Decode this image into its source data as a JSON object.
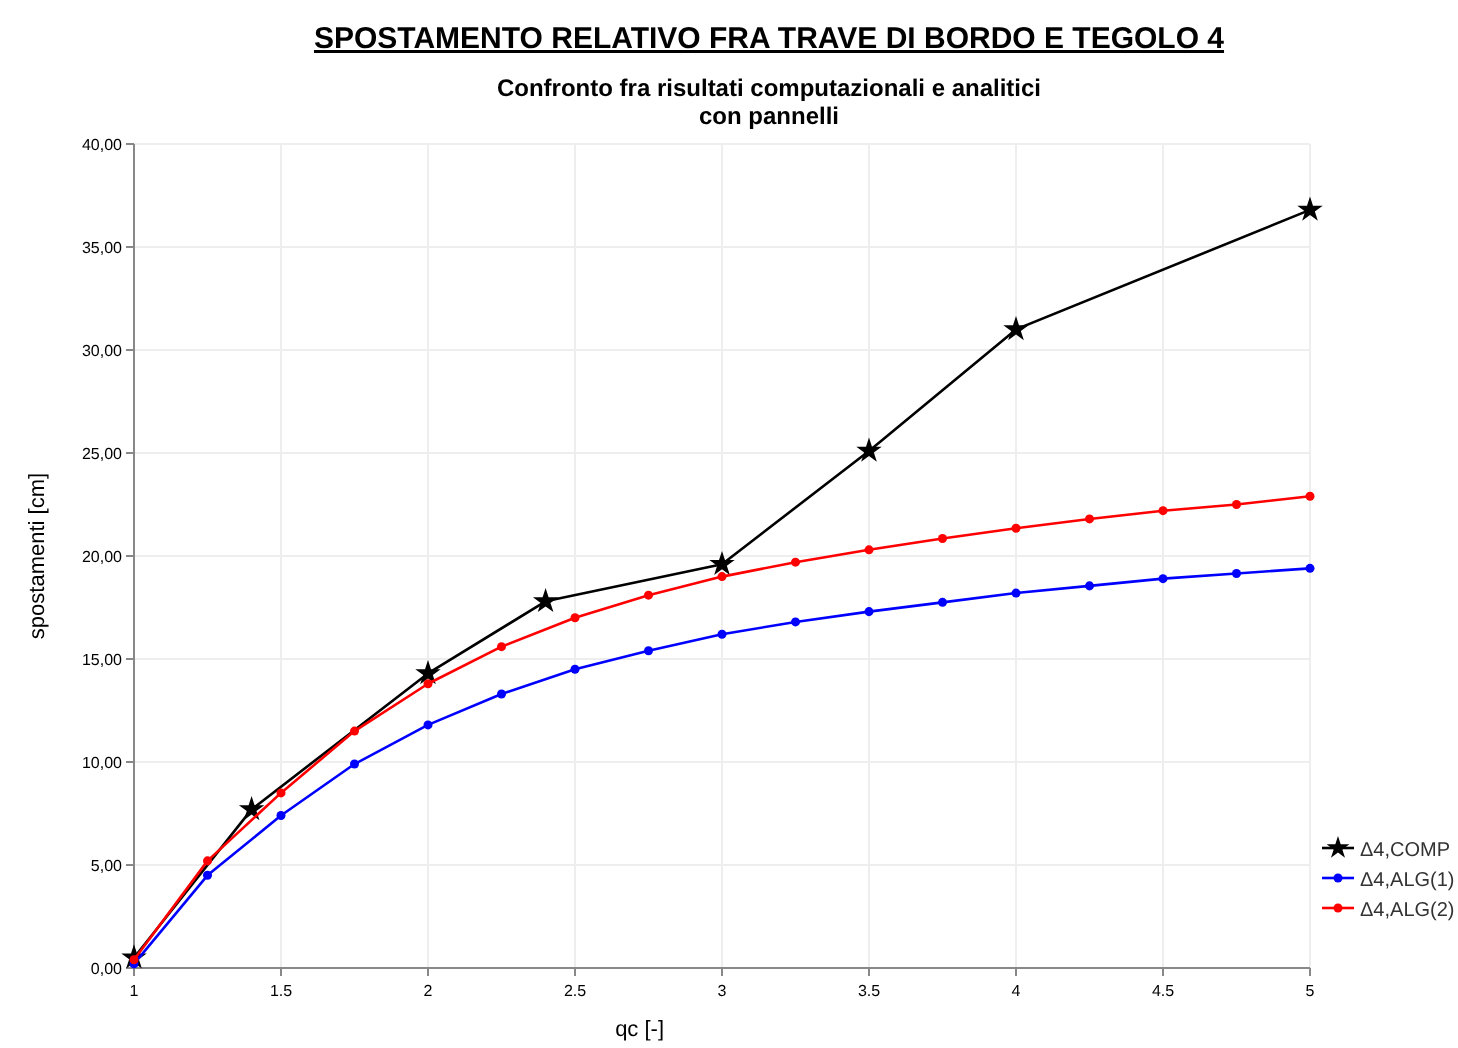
{
  "chart_data": {
    "type": "line",
    "title": "SPOSTAMENTO RELATIVO FRA TRAVE DI BORDO E TEGOLO 4",
    "subtitle": "Confronto fra risultati computazionali e analitici\ncon pannelli",
    "xlabel": "qc [-]",
    "ylabel": "spostamenti [cm]",
    "xlim": [
      1,
      5
    ],
    "xticks": [
      1,
      1.5,
      2,
      2.5,
      3,
      3.5,
      4,
      4.5,
      5
    ],
    "ylim": [
      0,
      40
    ],
    "yticks": [
      {
        "value": 0,
        "label": "0,00"
      },
      {
        "value": 5,
        "label": "5,00"
      },
      {
        "value": 10,
        "label": "10,00"
      },
      {
        "value": 15,
        "label": "15,00"
      },
      {
        "value": 20,
        "label": "20,00"
      },
      {
        "value": 25,
        "label": "25,00"
      },
      {
        "value": 30,
        "label": "30,00"
      },
      {
        "value": 35,
        "label": "35,00"
      },
      {
        "value": 40,
        "label": "40,00"
      }
    ],
    "grid": true,
    "legend": "right",
    "line_style": "solid",
    "series": [
      {
        "name": "Δ4,COMP",
        "color": "#000000",
        "marker": "star",
        "x": [
          1,
          1.4,
          2,
          2.4,
          3,
          3.5,
          4,
          5
        ],
        "values": [
          0.5,
          7.7,
          14.3,
          17.8,
          19.6,
          25.1,
          31.0,
          36.8
        ]
      },
      {
        "name": "Δ4,ALG(1)",
        "color": "#0000ff",
        "marker": "circle",
        "x": [
          1,
          1.25,
          1.5,
          1.75,
          2,
          2.25,
          2.5,
          2.75,
          3,
          3.25,
          3.5,
          3.75,
          4,
          4.25,
          4.5,
          4.75,
          5
        ],
        "values": [
          0.2,
          4.5,
          7.4,
          9.9,
          11.8,
          13.3,
          14.5,
          15.4,
          16.2,
          16.8,
          17.3,
          17.75,
          18.2,
          18.55,
          18.9,
          19.15,
          19.4
        ]
      },
      {
        "name": "Δ4,ALG(2)",
        "color": "#ff0000",
        "marker": "circle",
        "x": [
          1,
          1.25,
          1.5,
          1.75,
          2,
          2.25,
          2.5,
          2.75,
          3,
          3.25,
          3.5,
          3.75,
          4,
          4.25,
          4.5,
          4.75,
          5
        ],
        "values": [
          0.4,
          5.2,
          8.5,
          11.5,
          13.8,
          15.6,
          17.0,
          18.1,
          19.0,
          19.7,
          20.3,
          20.85,
          21.35,
          21.8,
          22.2,
          22.5,
          22.9
        ]
      }
    ]
  }
}
